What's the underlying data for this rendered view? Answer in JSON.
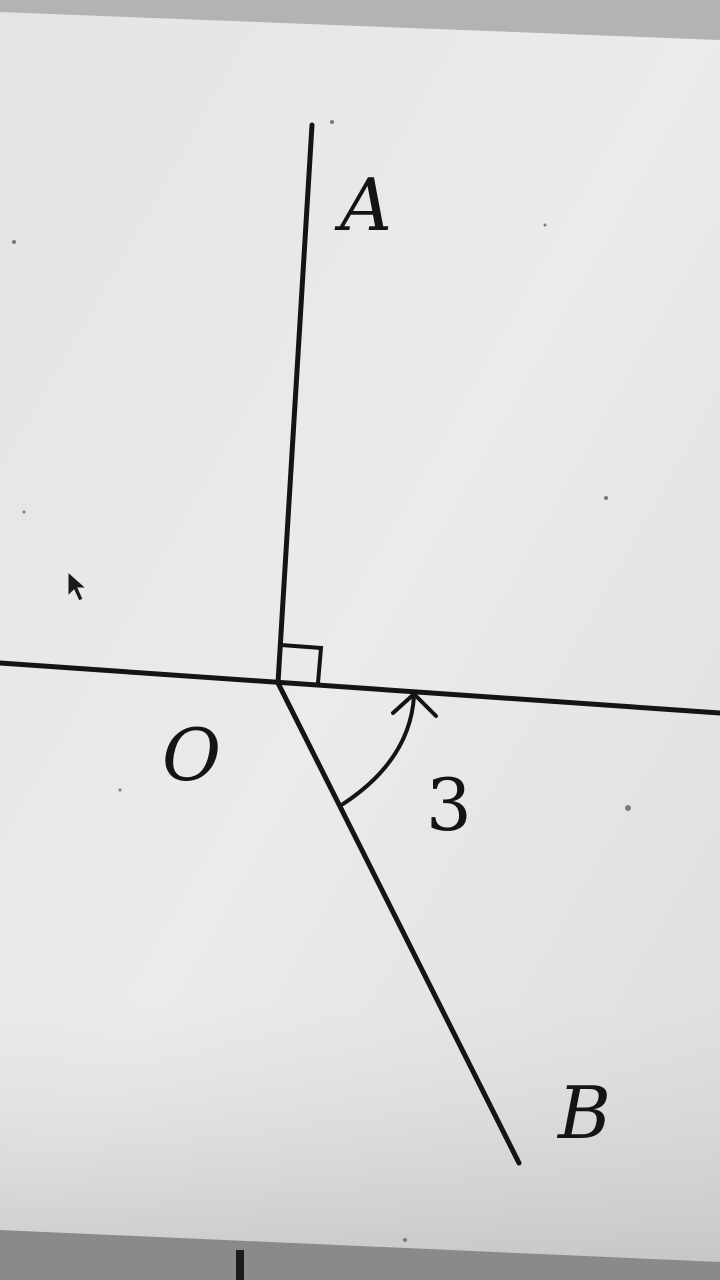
{
  "diagram": {
    "points": {
      "A": "A",
      "B": "B",
      "O": "O"
    },
    "angle_label": "3"
  }
}
